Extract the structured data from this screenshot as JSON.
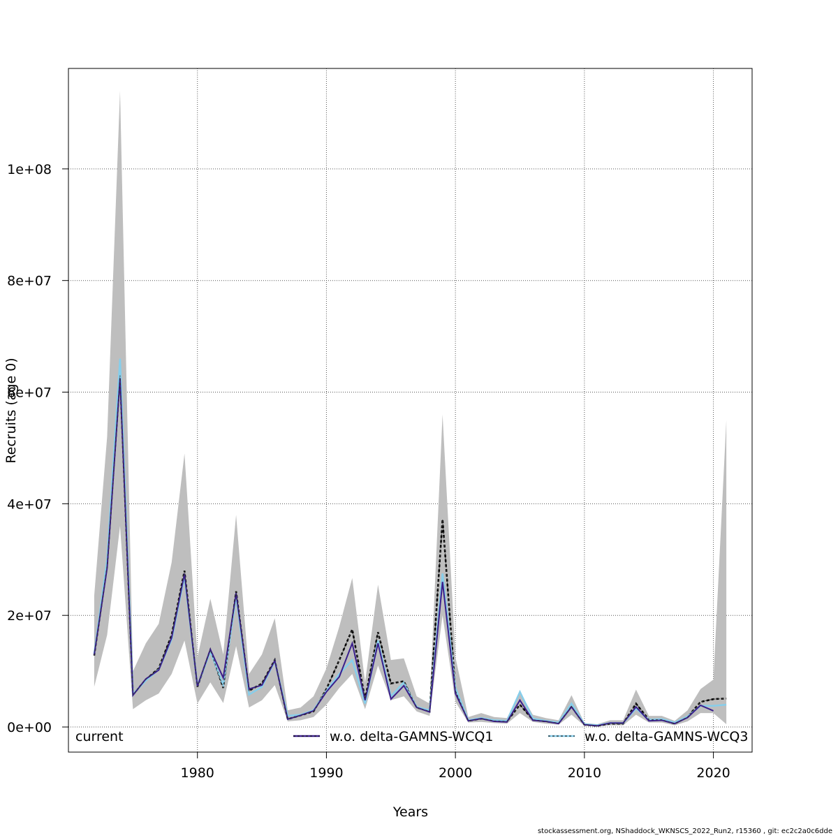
{
  "footer": "stockassessment.org, NShaddock_WKNSCS_2022_Run2, r15360 , git: ec2c2a0c6dde",
  "chart_data": {
    "type": "line",
    "xlabel": "Years",
    "ylabel": "Recruits (age 0)",
    "xlim": [
      1970,
      2023
    ],
    "ylim": [
      -4500000,
      118000000
    ],
    "x_ticks": [
      1980,
      1990,
      2000,
      2010,
      2020
    ],
    "y_ticks": [
      0,
      20000000,
      40000000,
      60000000,
      80000000,
      100000000
    ],
    "y_tick_labels": [
      "0e+00",
      "2e+07",
      "4e+07",
      "6e+07",
      "8e+07",
      "1e+08"
    ],
    "grid": true,
    "legend_placement": "bottom",
    "legend": [
      "current",
      "w.o. delta-GAMNS-WCQ1",
      "w.o. delta-GAMNS-WCQ3"
    ],
    "x": [
      1972,
      1973,
      1974,
      1975,
      1976,
      1977,
      1978,
      1979,
      1980,
      1981,
      1982,
      1983,
      1984,
      1985,
      1986,
      1987,
      1988,
      1989,
      1990,
      1991,
      1992,
      1993,
      1994,
      1995,
      1996,
      1997,
      1998,
      1999,
      2000,
      2001,
      2002,
      2003,
      2004,
      2005,
      2006,
      2007,
      2008,
      2009,
      2010,
      2011,
      2012,
      2013,
      2014,
      2015,
      2016,
      2017,
      2018,
      2019,
      2020,
      2021
    ],
    "ci_lower": [
      7200000,
      16500000,
      36000000,
      3200000,
      4800000,
      6000000,
      9500000,
      15500000,
      4200000,
      8000000,
      4300000,
      14500000,
      3500000,
      4800000,
      7500000,
      1000000,
      1200000,
      1800000,
      4000000,
      7000000,
      9500000,
      3200000,
      11000000,
      4800000,
      5500000,
      2800000,
      2000000,
      20000000,
      4500000,
      800000,
      900000,
      700000,
      600000,
      2500000,
      900000,
      600000,
      400000,
      2200000,
      200000,
      100000,
      300000,
      300000,
      2200000,
      800000,
      800000,
      300000,
      1000000,
      2500000,
      2500000,
      500000
    ],
    "ci_upper": [
      23500000,
      52000000,
      114000000,
      10000000,
      15000000,
      18500000,
      29500000,
      49000000,
      12500000,
      23000000,
      13000000,
      38000000,
      9500000,
      13000000,
      19500000,
      3000000,
      3500000,
      5500000,
      10500000,
      18000000,
      26700000,
      8000000,
      25500000,
      12000000,
      12300000,
      5500000,
      4200000,
      56000000,
      12500000,
      1800000,
      2500000,
      1800000,
      1600000,
      6300000,
      2200000,
      1600000,
      1200000,
      5700000,
      700000,
      500000,
      1200000,
      1200000,
      6700000,
      2000000,
      2000000,
      1100000,
      3000000,
      6800000,
      8500000,
      55000000
    ],
    "series": [
      {
        "name": "current",
        "color": "#000000",
        "dashed": true,
        "values": [
          12800000,
          29000000,
          63000000,
          5800000,
          8500000,
          10500000,
          16500000,
          28000000,
          7200000,
          13800000,
          7000000,
          24300000,
          6500000,
          7800000,
          12000000,
          1400000,
          2100000,
          2800000,
          6800000,
          12000000,
          17500000,
          5000000,
          17000000,
          7800000,
          8200000,
          3500000,
          2800000,
          37200000,
          6500000,
          1100000,
          1500000,
          1100000,
          1000000,
          4000000,
          1300000,
          1000000,
          700000,
          3700000,
          400000,
          200000,
          600000,
          600000,
          4200000,
          1300000,
          1300000,
          600000,
          1800000,
          4500000,
          5000000,
          5100000
        ]
      },
      {
        "name": "w.o. delta-GAMNS-WCQ1",
        "color": "#3b1f8c",
        "dashed": false,
        "values": [
          12900000,
          28500000,
          62500000,
          5700000,
          8600000,
          10200000,
          16000000,
          27500000,
          7300000,
          13900000,
          8800000,
          24000000,
          6800000,
          7500000,
          11900000,
          1400000,
          2100000,
          2900000,
          6300000,
          9000000,
          15000000,
          4800000,
          15000000,
          5000000,
          7400000,
          3500000,
          2700000,
          26000000,
          6000000,
          1100000,
          1500000,
          1000000,
          900000,
          4800000,
          1200000,
          1000000,
          600000,
          3600000,
          400000,
          200000,
          700000,
          700000,
          3600000,
          1100000,
          1200000,
          600000,
          1700000,
          3900000,
          2900000,
          null
        ]
      },
      {
        "name": "w.o. delta-GAMNS-WCQ3",
        "color": "#87ceeb",
        "dashed": true,
        "values": [
          13100000,
          30000000,
          66000000,
          5900000,
          8300000,
          10300000,
          15700000,
          27000000,
          7400000,
          13500000,
          7500000,
          23500000,
          5800000,
          7200000,
          11800000,
          2000000,
          2200000,
          3000000,
          6500000,
          9500000,
          12000000,
          4200000,
          15500000,
          5500000,
          8000000,
          3600000,
          3000000,
          27500000,
          7000000,
          1200000,
          1600000,
          1200000,
          1100000,
          6300000,
          1500000,
          1100000,
          800000,
          4200000,
          500000,
          300000,
          700000,
          700000,
          3300000,
          1300000,
          1400000,
          800000,
          1900000,
          3800000,
          3800000,
          4000000
        ]
      }
    ]
  }
}
